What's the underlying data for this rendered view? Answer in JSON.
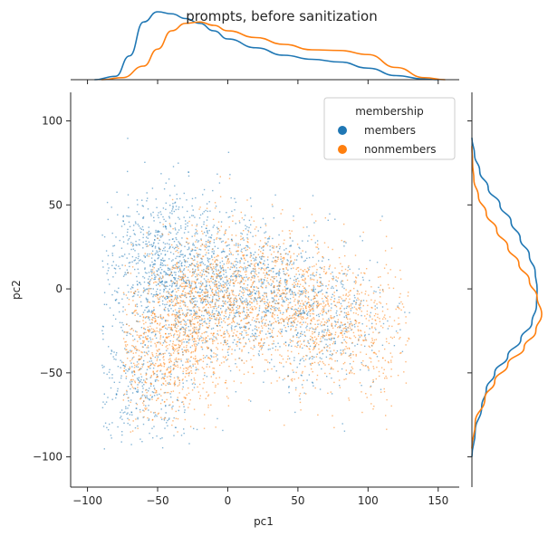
{
  "chart_data": {
    "type": "scatter",
    "title": "prompts, before sanitization",
    "xlabel": "pc1",
    "ylabel": "pc2",
    "xlim": [
      -112,
      165
    ],
    "ylim": [
      -118,
      117
    ],
    "xticks": [
      -100,
      -50,
      0,
      50,
      100,
      150
    ],
    "yticks": [
      -100,
      -50,
      0,
      50,
      100
    ],
    "xtick_labels": [
      "−100",
      "−50",
      "0",
      "50",
      "100",
      "150"
    ],
    "ytick_labels": [
      "−100",
      "−50",
      "0",
      "50",
      "100"
    ],
    "legend": {
      "title": "membership",
      "placement": "top-right",
      "entries": [
        "members",
        "nonmembers"
      ]
    },
    "series": [
      {
        "name": "members",
        "color": "#1f77b4",
        "cluster_centers": [
          [
            -58,
            10
          ],
          [
            -40,
            25
          ],
          [
            -25,
            -10
          ],
          [
            0,
            5
          ],
          [
            30,
            0
          ],
          [
            70,
            -20
          ],
          [
            -65,
            -60
          ]
        ],
        "x_range": [
          -90,
          130
        ],
        "y_range": [
          -95,
          95
        ]
      },
      {
        "name": "nonmembers",
        "color": "#ff7f0e",
        "cluster_centers": [
          [
            -30,
            -25
          ],
          [
            -15,
            0
          ],
          [
            20,
            0
          ],
          [
            55,
            -10
          ],
          [
            90,
            -25
          ],
          [
            -55,
            -45
          ]
        ],
        "x_range": [
          -75,
          130
        ],
        "y_range": [
          -85,
          75
        ]
      }
    ],
    "marginal_x": {
      "type": "kde",
      "series": [
        {
          "name": "members",
          "x": [
            -95,
            -80,
            -70,
            -60,
            -50,
            -40,
            -30,
            -20,
            -10,
            0,
            20,
            40,
            60,
            80,
            100,
            120,
            140,
            150
          ],
          "density": [
            0.0,
            0.05,
            0.35,
            0.85,
            1.0,
            0.97,
            0.9,
            0.83,
            0.72,
            0.6,
            0.47,
            0.36,
            0.3,
            0.26,
            0.17,
            0.06,
            0.01,
            0.0
          ]
        },
        {
          "name": "nonmembers",
          "x": [
            -90,
            -75,
            -60,
            -50,
            -40,
            -30,
            -20,
            -10,
            0,
            20,
            40,
            60,
            80,
            100,
            120,
            140,
            155
          ],
          "density": [
            0.0,
            0.03,
            0.2,
            0.45,
            0.72,
            0.83,
            0.85,
            0.8,
            0.72,
            0.62,
            0.52,
            0.44,
            0.43,
            0.37,
            0.18,
            0.03,
            0.0
          ]
        }
      ]
    },
    "marginal_y": {
      "type": "kde",
      "series": [
        {
          "name": "members",
          "y": [
            -100,
            -85,
            -70,
            -60,
            -50,
            -40,
            -30,
            -20,
            -10,
            0,
            10,
            20,
            30,
            40,
            50,
            60,
            70,
            80,
            90
          ],
          "density": [
            0.0,
            0.05,
            0.15,
            0.22,
            0.35,
            0.55,
            0.75,
            0.92,
            0.99,
            1.0,
            0.97,
            0.88,
            0.74,
            0.6,
            0.43,
            0.25,
            0.12,
            0.04,
            0.0
          ]
        },
        {
          "name": "nonmembers",
          "y": [
            -95,
            -80,
            -65,
            -55,
            -45,
            -35,
            -25,
            -15,
            -5,
            5,
            15,
            25,
            35,
            45,
            55,
            65,
            75,
            85
          ],
          "density": [
            0.0,
            0.05,
            0.2,
            0.35,
            0.55,
            0.8,
            0.98,
            1.07,
            1.0,
            0.88,
            0.72,
            0.55,
            0.38,
            0.22,
            0.1,
            0.03,
            0.01,
            0.0
          ]
        }
      ]
    }
  }
}
